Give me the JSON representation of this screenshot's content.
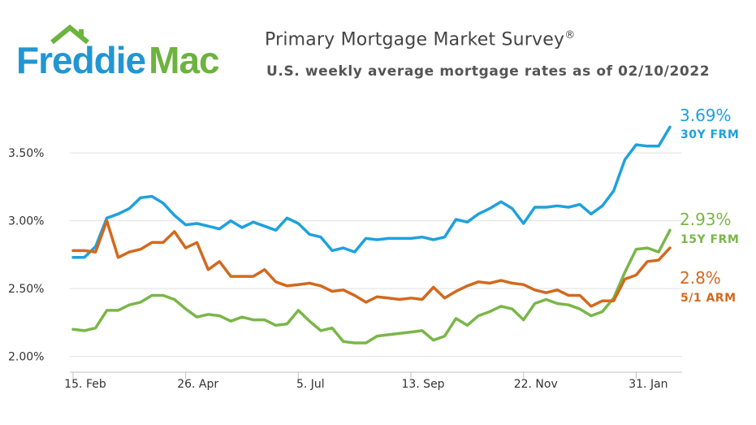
{
  "header": {
    "logo_text_a": "Freddie",
    "logo_text_b": "Mac",
    "title": "Primary Mortgage Market Survey",
    "title_mark": "®",
    "subtitle": "U.S. weekly average mortgage rates as of 02/10/2022"
  },
  "colors": {
    "logo_blue": "#2196d3",
    "logo_green": "#6cb33f",
    "frm30": "#1ea1dd",
    "frm15": "#7ab648",
    "arm51": "#d2691e",
    "grid": "#e0e0e0"
  },
  "chart_data": {
    "type": "line",
    "title": "Primary Mortgage Market Survey",
    "subtitle": "U.S. weekly average mortgage rates as of 02/10/2022",
    "ylim": [
      1.98,
      3.98
    ],
    "yticks": [
      2.0,
      2.5,
      3.0,
      3.5
    ],
    "ytick_labels": [
      "2.00%",
      "2.50%",
      "3.00%",
      "3.50%"
    ],
    "x_count": 54,
    "xtick_index": [
      0,
      10,
      20,
      30,
      40,
      50
    ],
    "xtick_labels": [
      "15. Feb",
      "26. Apr",
      "5. Jul",
      "13. Sep",
      "22. Nov",
      "31. Jan"
    ],
    "grid": "horizontal",
    "series": [
      {
        "name": "30Y FRM",
        "end_label": "3.69%",
        "color_key": "frm30",
        "values": [
          2.73,
          2.73,
          2.81,
          3.02,
          3.05,
          3.09,
          3.17,
          3.18,
          3.13,
          3.04,
          2.97,
          2.98,
          2.96,
          2.94,
          3.0,
          2.95,
          2.99,
          2.96,
          2.93,
          3.02,
          2.98,
          2.9,
          2.88,
          2.78,
          2.8,
          2.77,
          2.87,
          2.86,
          2.87,
          2.87,
          2.87,
          2.88,
          2.86,
          2.88,
          3.01,
          2.99,
          3.05,
          3.09,
          3.14,
          3.09,
          2.98,
          3.1,
          3.1,
          3.11,
          3.1,
          3.12,
          3.05,
          3.11,
          3.22,
          3.45,
          3.56,
          3.55,
          3.55,
          3.69
        ]
      },
      {
        "name": "15Y FRM",
        "end_label": "2.93%",
        "color_key": "frm15",
        "values": [
          2.2,
          2.19,
          2.21,
          2.34,
          2.34,
          2.38,
          2.4,
          2.45,
          2.45,
          2.42,
          2.35,
          2.29,
          2.31,
          2.3,
          2.26,
          2.29,
          2.27,
          2.27,
          2.23,
          2.24,
          2.34,
          2.26,
          2.19,
          2.21,
          2.11,
          2.1,
          2.1,
          2.15,
          2.16,
          2.17,
          2.18,
          2.19,
          2.12,
          2.15,
          2.28,
          2.23,
          2.3,
          2.33,
          2.37,
          2.35,
          2.27,
          2.39,
          2.42,
          2.39,
          2.38,
          2.35,
          2.3,
          2.33,
          2.43,
          2.62,
          2.79,
          2.8,
          2.77,
          2.93
        ]
      },
      {
        "name": "5/1 ARM",
        "end_label": "2.8%",
        "color_key": "arm51",
        "values": [
          2.78,
          2.78,
          2.77,
          3.0,
          2.73,
          2.77,
          2.79,
          2.84,
          2.84,
          2.92,
          2.8,
          2.84,
          2.64,
          2.7,
          2.59,
          2.59,
          2.59,
          2.64,
          2.55,
          2.52,
          2.53,
          2.54,
          2.52,
          2.48,
          2.49,
          2.45,
          2.4,
          2.44,
          2.43,
          2.42,
          2.43,
          2.42,
          2.51,
          2.43,
          2.48,
          2.52,
          2.55,
          2.54,
          2.56,
          2.54,
          2.53,
          2.49,
          2.47,
          2.49,
          2.45,
          2.45,
          2.37,
          2.41,
          2.41,
          2.57,
          2.6,
          2.7,
          2.71,
          2.8
        ]
      }
    ]
  }
}
